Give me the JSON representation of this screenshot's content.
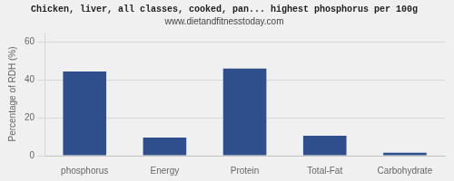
{
  "chart_data": {
    "type": "bar",
    "title": "Chicken, liver, all classes, cooked, pan... highest phosphorus per 100g",
    "subtitle": "www.dietandfitnesstoday.com",
    "ylabel": "Percentage of RDH (%)",
    "categories": [
      "phosphorus",
      "Energy",
      "Protein",
      "Total-Fat",
      "Carbohydrate"
    ],
    "values": [
      44.5,
      9.5,
      46.0,
      10.5,
      1.5
    ],
    "color": "#2e4f8c",
    "ylim": [
      0,
      65
    ],
    "yticks": [
      0,
      20,
      40,
      60
    ],
    "grid": true
  }
}
